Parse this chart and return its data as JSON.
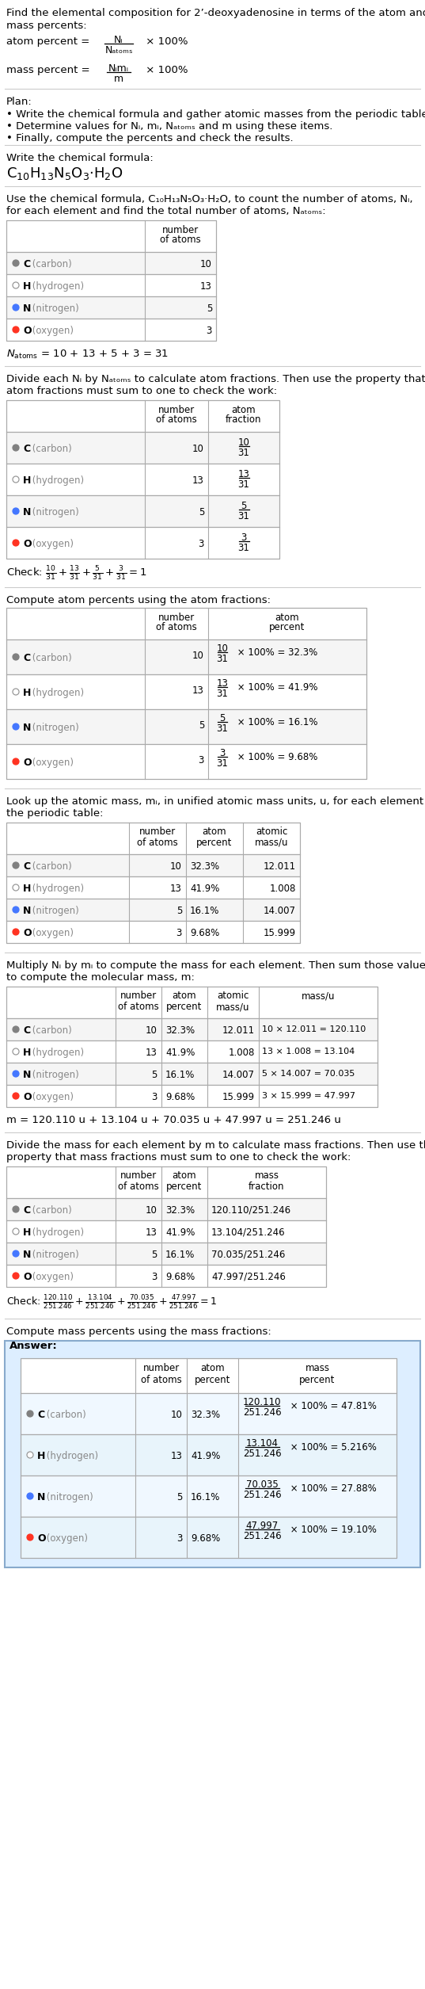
{
  "title_line1": "Find the elemental composition for 2’-deoxyadenosine in terms of the atom and",
  "title_line2": "mass percents:",
  "plan_bullets": [
    "Write the chemical formula and gather atomic masses from the periodic table.",
    "Determine values for Nᵢ, mᵢ, Nₐₜₒₘₛ and m using these items.",
    "Finally, compute the percents and check the results."
  ],
  "element_colors": {
    "C": "#808080",
    "H": "white",
    "N": "#4477ff",
    "O": "#ff3322"
  },
  "element_edge": {
    "C": "#808080",
    "H": "#999999",
    "N": "#4477ff",
    "O": "#ff3322"
  },
  "bg_color": "#ffffff",
  "answer_bg": "#ddeeff",
  "answer_border": "#88aacc",
  "sep_color": "#cccccc",
  "table_line": "#aaaaaa"
}
